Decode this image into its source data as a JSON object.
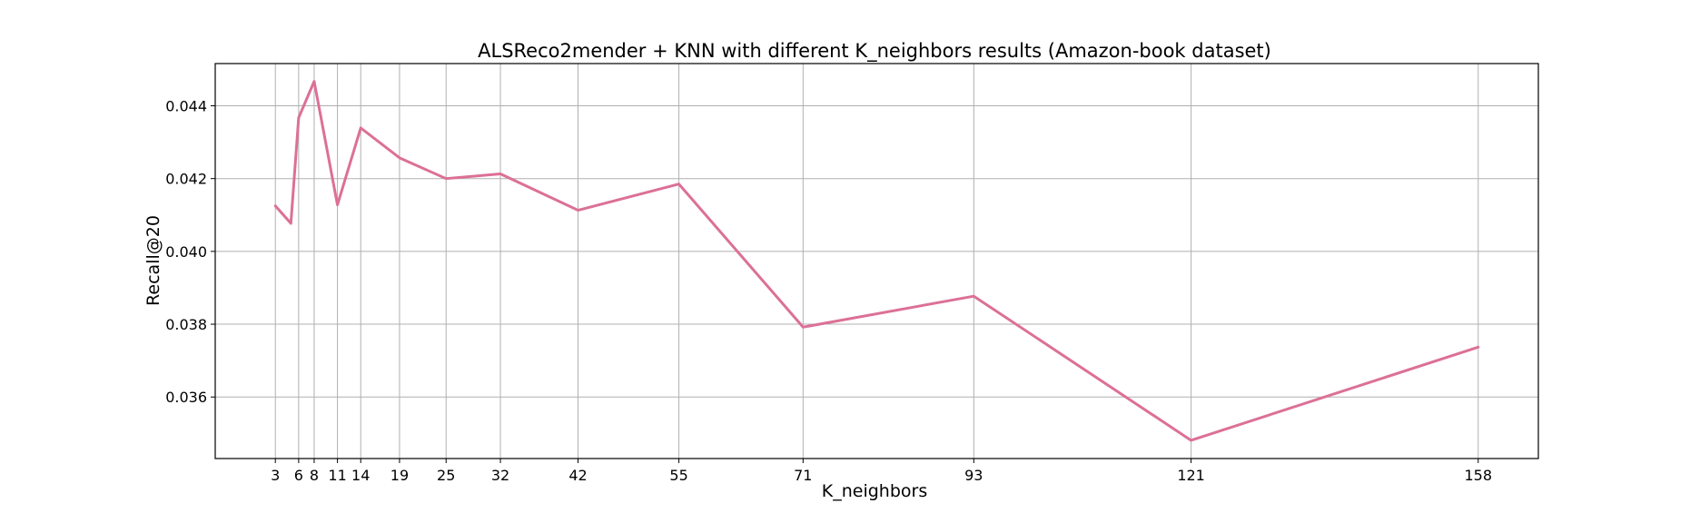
{
  "chart_data": {
    "type": "line",
    "title": "ALSReco2mender + KNN with different K_neighbors results (Amazon-book dataset)",
    "xlabel": "K_neighbors",
    "ylabel": "Recall@20",
    "x_ticks": [
      3,
      6,
      8,
      11,
      14,
      19,
      25,
      32,
      42,
      55,
      71,
      93,
      121,
      158
    ],
    "y_ticks": [
      "0.036",
      "0.038",
      "0.040",
      "0.042",
      "0.044"
    ],
    "xlim": [
      -4.75,
      165.75
    ],
    "ylim": [
      0.03431,
      0.04516
    ],
    "grid": true,
    "series": [
      {
        "color": "#dc7097",
        "x": [
          3,
          5,
          6,
          8,
          11,
          14,
          19,
          25,
          32,
          42,
          55,
          71,
          93,
          121,
          158
        ],
        "y": [
          0.04125,
          0.04077,
          0.04367,
          0.04467,
          0.04128,
          0.04339,
          0.04257,
          0.042,
          0.04213,
          0.04113,
          0.04185,
          0.03792,
          0.03877,
          0.03481,
          0.03737
        ]
      }
    ]
  }
}
